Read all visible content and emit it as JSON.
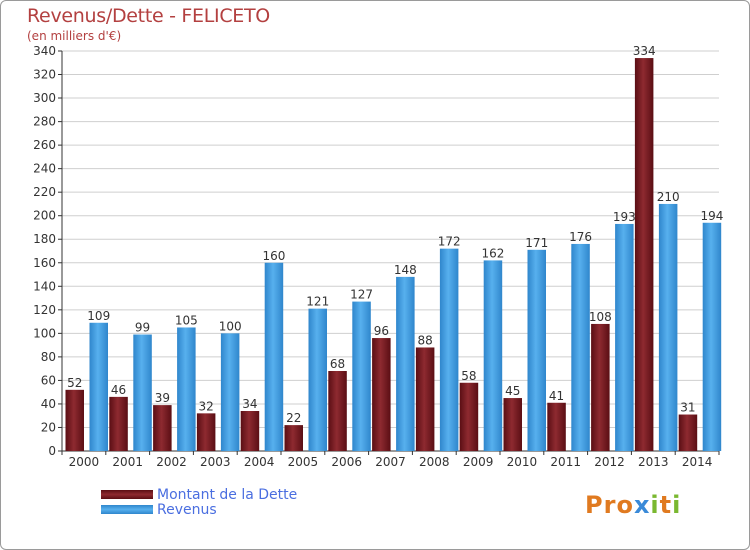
{
  "title": "Revenus/Dette - FELICETO",
  "subtitle": "(en milliers d'€)",
  "brand": {
    "text": "Proxiti",
    "letter_colors": [
      "#e07a20",
      "#e07a20",
      "#e07a20",
      "#3a8ad8",
      "#7ab830",
      "#e07a20",
      "#7ab830"
    ]
  },
  "colors": {
    "dette": "#7a1c22",
    "revenus": "#3f9be0",
    "axis": "#333333",
    "grid": "#cfcfcf",
    "title": "#b34040",
    "legend_text": "#4a6ee0"
  },
  "chart_data": {
    "type": "bar",
    "title": "Revenus/Dette - FELICETO",
    "ylabel": "(en milliers d'€)",
    "xlabel": "",
    "categories": [
      "2000",
      "2001",
      "2002",
      "2003",
      "2004",
      "2005",
      "2006",
      "2007",
      "2008",
      "2009",
      "2010",
      "2011",
      "2012",
      "2013",
      "2014"
    ],
    "series": [
      {
        "name": "Montant de la Dette",
        "values": [
          52,
          46,
          39,
          32,
          34,
          22,
          68,
          96,
          88,
          58,
          45,
          41,
          108,
          334,
          31
        ]
      },
      {
        "name": "Revenus",
        "values": [
          109,
          99,
          105,
          100,
          160,
          121,
          127,
          148,
          172,
          162,
          171,
          176,
          193,
          210,
          194
        ]
      }
    ],
    "ylim": [
      0,
      340
    ],
    "yticks": [
      0,
      20,
      40,
      60,
      80,
      100,
      120,
      140,
      160,
      180,
      200,
      220,
      240,
      260,
      280,
      300,
      320,
      340
    ],
    "grid": true,
    "legend_position": "bottom-left"
  }
}
